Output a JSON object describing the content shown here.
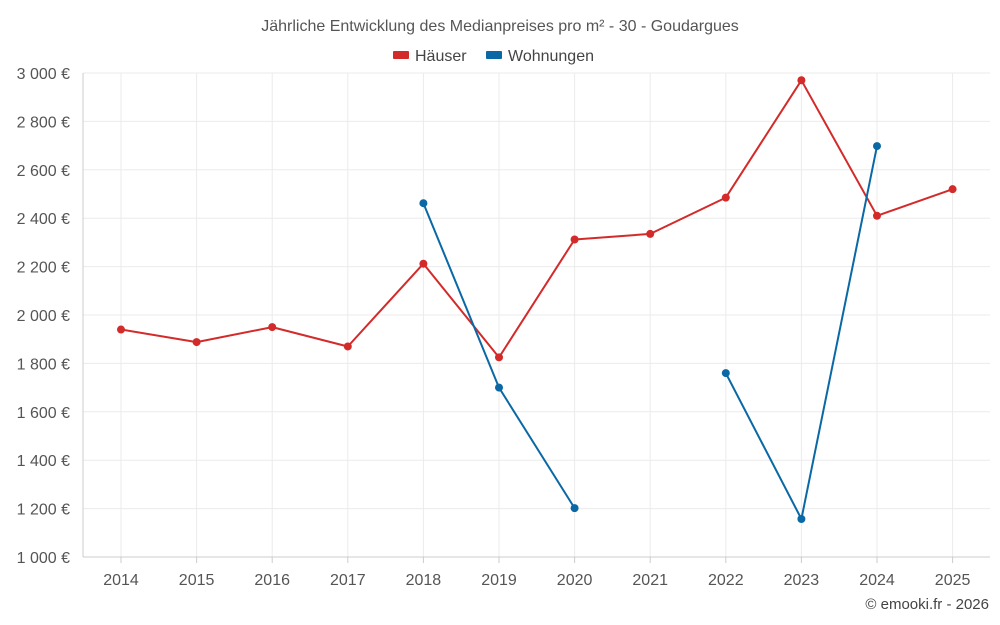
{
  "chart_data": {
    "type": "line",
    "title": "Jährliche Entwicklung des Medianpreises pro m² - 30 - Goudargues",
    "xlabel": "",
    "ylabel": "",
    "categories": [
      "2014",
      "2015",
      "2016",
      "2017",
      "2018",
      "2019",
      "2020",
      "2021",
      "2022",
      "2023",
      "2024",
      "2025"
    ],
    "ylim": [
      1000,
      3000
    ],
    "yticks": [
      1000,
      1200,
      1400,
      1600,
      1800,
      2000,
      2200,
      2400,
      2600,
      2800,
      3000
    ],
    "ytick_labels": [
      "1 000 €",
      "1 200 €",
      "1 400 €",
      "1 600 €",
      "1 800 €",
      "2 000 €",
      "2 200 €",
      "2 400 €",
      "2 600 €",
      "2 800 €",
      "3 000 €"
    ],
    "grid": true,
    "legend_position": "top-center",
    "series": [
      {
        "name": "Häuser",
        "color": "#d32a2a",
        "values": [
          1940,
          1888,
          1950,
          1870,
          2212,
          1825,
          2312,
          2335,
          2485,
          2970,
          2410,
          2520
        ]
      },
      {
        "name": "Wohnungen",
        "color": "#0a68a5",
        "values": [
          null,
          null,
          null,
          null,
          2462,
          1700,
          1202,
          null,
          1760,
          1157,
          2698,
          null
        ]
      }
    ]
  },
  "footer": {
    "copyright": "© emooki.fr - 2026"
  }
}
